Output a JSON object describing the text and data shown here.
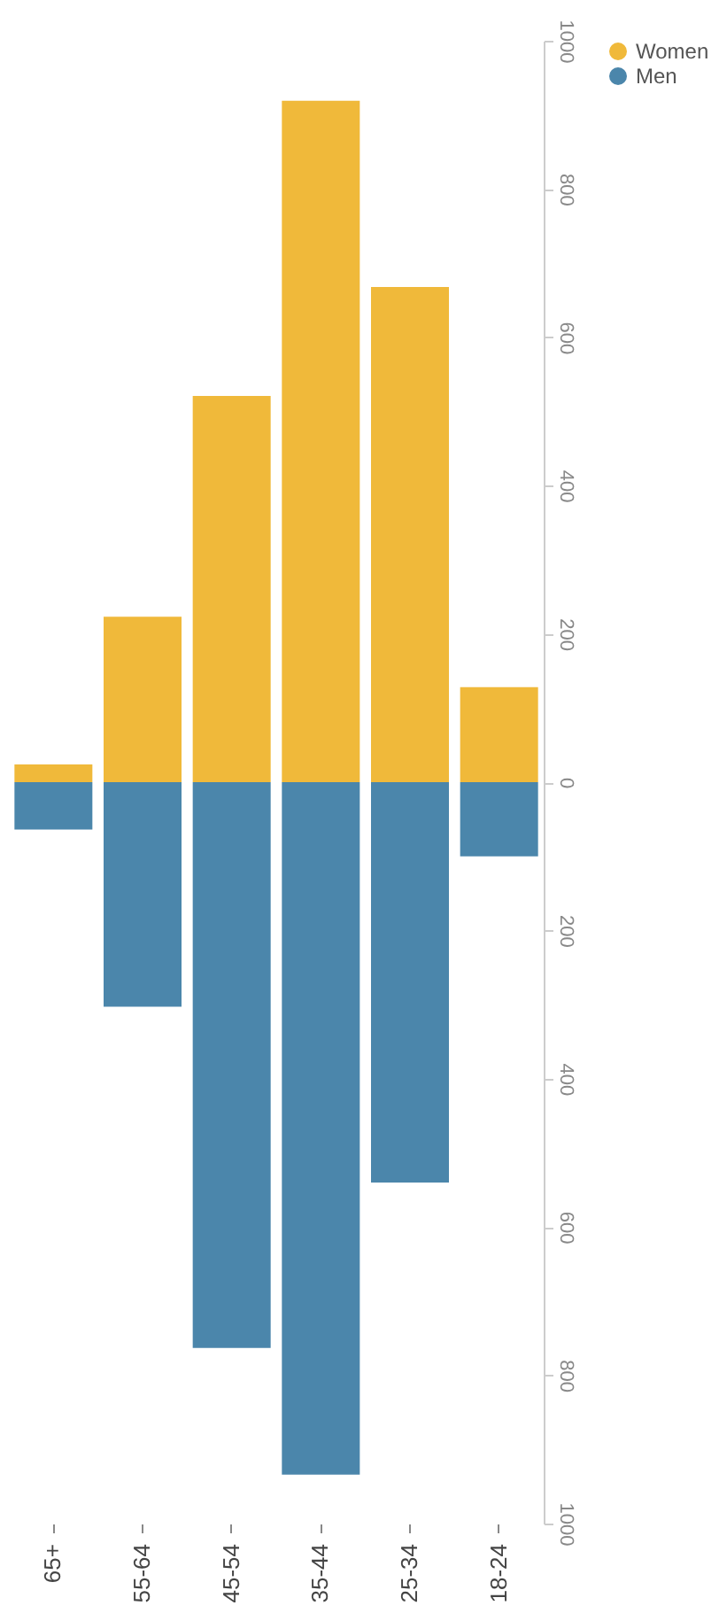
{
  "chart_data": {
    "type": "bar",
    "stacked": true,
    "categories": [
      "65+",
      "55-64",
      "45-54",
      "35-44",
      "25-34",
      "18-24"
    ],
    "series": [
      {
        "name": "Women",
        "color": "#f0b93a",
        "values": [
          24,
          223,
          521,
          919,
          668,
          128
        ]
      },
      {
        "name": "Men",
        "color": "#4b86ab",
        "values": [
          -64,
          -303,
          -763,
          -934,
          -540,
          -100
        ]
      }
    ],
    "ylim": [
      -1000,
      1000
    ],
    "yticks": [
      {
        "value": -1000,
        "label": "1000"
      },
      {
        "value": -800,
        "label": "800"
      },
      {
        "value": -600,
        "label": "600"
      },
      {
        "value": -400,
        "label": "400"
      },
      {
        "value": -200,
        "label": "200"
      },
      0,
      200,
      400,
      600,
      800,
      1000
    ],
    "grid": false,
    "legend": "right"
  }
}
